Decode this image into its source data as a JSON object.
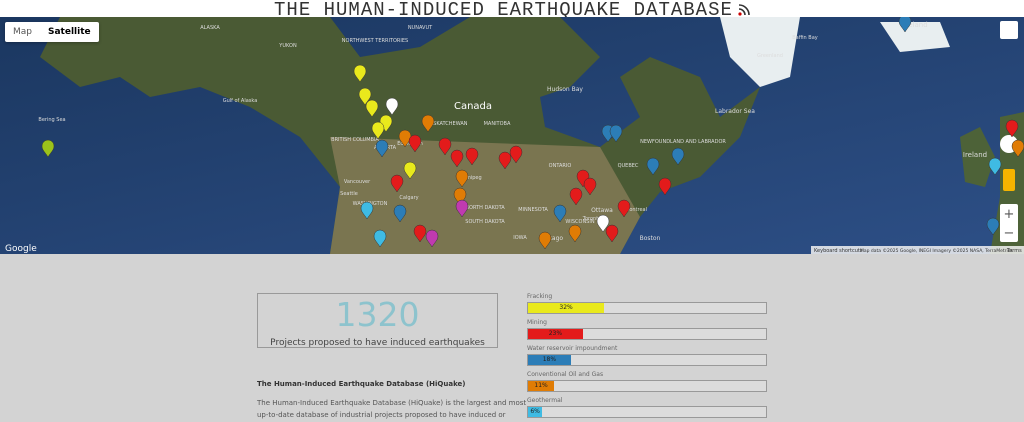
{
  "header": {
    "title": "THE HUMAN-INDUCED EARTHQUAKE DATABASE"
  },
  "map": {
    "buttons": [
      "Map",
      "Satellite"
    ],
    "labels": [
      "Canada",
      "Hudson Bay",
      "Labrador Sea",
      "Iceland",
      "Ireland",
      "Bering Sea",
      "Gulf of Alaska",
      "ALASKA",
      "YUKON",
      "NORTHWEST TERRITORIES",
      "NUNAVUT",
      "BRITISH COLUMBIA",
      "ALBERTA",
      "SASKATCHEWAN",
      "MANITOBA",
      "ONTARIO",
      "QUEBEC",
      "NEWFOUNDLAND AND LABRADOR",
      "Vancouver",
      "Calgary",
      "Winnipeg",
      "Ottawa",
      "Chicago",
      "Boston",
      "Seattle",
      "WASHINGTON",
      "NORTH DAKOTA",
      "SOUTH DAKOTA",
      "MINNESOTA",
      "WISCONSIN",
      "IOWA",
      "Toronto",
      "Montreal",
      "Edmonton",
      "Baffin Bay",
      "Greenland"
    ],
    "logo": "Google",
    "shortcuts": "Keyboard shortcuts",
    "attribution": "Map data ©2025 Google, INEGI Imagery ©2025 NASA, TerraMetrics",
    "terms": "Terms"
  },
  "stats": {
    "count": "1320",
    "label": "Projects proposed to have induced earthquakes"
  },
  "bars": [
    {
      "name": "Fracking",
      "value": 32,
      "value_label": "32%",
      "color": "#e9e91c"
    },
    {
      "name": "Mining",
      "value": 23,
      "value_label": "23%",
      "color": "#e31b1b"
    },
    {
      "name": "Water reservoir impoundment",
      "value": 18,
      "value_label": "18%",
      "color": "#2c7db7"
    },
    {
      "name": "Conventional Oil and Gas",
      "value": 11,
      "value_label": "11%",
      "color": "#e07c05"
    },
    {
      "name": "Geothermal",
      "value": 6,
      "value_label": "6%",
      "color": "#3fbbe3"
    }
  ],
  "about": {
    "heading": "The Human-Induced Earthquake Database (HiQuake)",
    "lines": [
      "The Human-Induced Earthquake Database (HiQuake) is the largest and most",
      "up-to-date database of industrial projects proposed to have induced or"
    ]
  }
}
